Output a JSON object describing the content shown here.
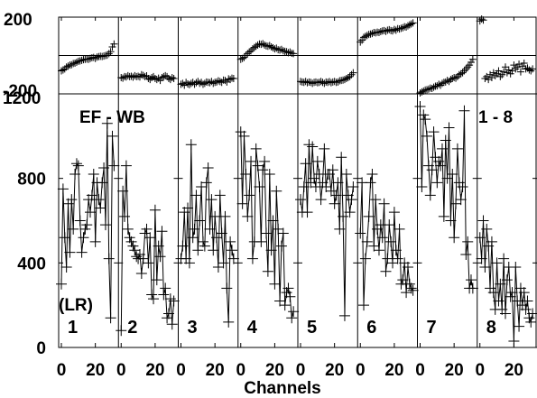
{
  "chart_data": {
    "type": "line",
    "panel_count": 8,
    "xlabel": "Channels",
    "x_tick_labels": [
      "0",
      "20"
    ],
    "xlim_per_panel": [
      0,
      32
    ],
    "top_strip": {
      "ylim": [
        -200,
        200
      ],
      "y_tick_labels": [
        "200",
        "-200"
      ],
      "reference_line": 0
    },
    "main": {
      "ylim": [
        0,
        1200
      ],
      "y_ticks": [
        0,
        400,
        800,
        1200
      ],
      "y_tick_labels": [
        "0",
        "400",
        "800",
        "1200"
      ],
      "ylabel": "(LR)",
      "title_left": "EF - WB",
      "title_right": "1 - 8"
    },
    "series": [
      {
        "name": "1",
        "residuals": [
          -80,
          -75,
          -70,
          -60,
          -55,
          -50,
          -48,
          -42,
          -40,
          -35,
          -30,
          -28,
          -25,
          -22,
          -20,
          -18,
          -20,
          -15,
          -12,
          -10,
          -15,
          -8,
          -6,
          -4,
          -5,
          -3,
          0,
          2,
          10,
          20,
          45,
          60
        ],
        "values": [
          300,
          750,
          520,
          380,
          680,
          450,
          700,
          560,
          820,
          870,
          860,
          600,
          450,
          520,
          560,
          580,
          700,
          640,
          720,
          820,
          500,
          780,
          700,
          660,
          780,
          850,
          580,
          1060,
          420,
          140,
          1000,
          860
        ]
      },
      {
        "name": "2",
        "residuals": [
          -115,
          -118,
          -110,
          -112,
          -105,
          -110,
          -108,
          -113,
          -105,
          -110,
          -108,
          -112,
          -100,
          -104,
          -110,
          -106,
          -120,
          -125,
          -115,
          -110,
          -120,
          -125,
          -118,
          -130,
          -115,
          -110,
          -105,
          -110,
          -120,
          -125,
          -115,
          -120
        ],
        "values": [
          80,
          740,
          620,
          860,
          560,
          520,
          500,
          480,
          460,
          430,
          420,
          440,
          350,
          420,
          540,
          560,
          400,
          520,
          250,
          230,
          650,
          320,
          480,
          430,
          550,
          250,
          280,
          140,
          160,
          230,
          110,
          220
        ]
      },
      {
        "name": "3",
        "residuals": [
          -150,
          -145,
          -155,
          -140,
          -148,
          -152,
          -145,
          -140,
          -150,
          -142,
          -135,
          -145,
          -140,
          -150,
          -145,
          -138,
          -140,
          -142,
          -135,
          -145,
          -140,
          -138,
          -132,
          -136,
          -140,
          -128,
          -130,
          -138,
          -122,
          -125,
          -118,
          -120
        ],
        "values": [
          420,
          480,
          640,
          420,
          660,
          400,
          960,
          520,
          560,
          720,
          460,
          600,
          760,
          500,
          480,
          780,
          850,
          560,
          700,
          460,
          620,
          520,
          380,
          720,
          540,
          400,
          620,
          280,
          120,
          500,
          460,
          420
        ]
      },
      {
        "name": "4",
        "residuals": [
          -20,
          -15,
          -10,
          0,
          10,
          18,
          25,
          35,
          42,
          48,
          55,
          60,
          58,
          62,
          55,
          50,
          48,
          52,
          45,
          40,
          35,
          38,
          30,
          28,
          32,
          25,
          22,
          20,
          15,
          18,
          12,
          10
        ],
        "values": [
          1020,
          680,
          1000,
          820,
          620,
          720,
          880,
          420,
          500,
          940,
          860,
          760,
          500,
          840,
          880,
          540,
          360,
          820,
          460,
          600,
          300,
          740,
          560,
          220,
          480,
          540,
          200,
          260,
          280,
          240,
          140,
          170
        ]
      },
      {
        "name": "5",
        "residuals": [
          -135,
          -138,
          -140,
          -135,
          -142,
          -138,
          -140,
          -145,
          -140,
          -138,
          -142,
          -140,
          -135,
          -140,
          -145,
          -138,
          -140,
          -136,
          -142,
          -138,
          -135,
          -140,
          -138,
          -132,
          -130,
          -128,
          -125,
          -120,
          -115,
          -110,
          -100,
          -90
        ],
        "values": [
          700,
          640,
          760,
          870,
          640,
          960,
          780,
          950,
          800,
          760,
          880,
          820,
          700,
          780,
          940,
          760,
          820,
          820,
          740,
          840,
          680,
          720,
          780,
          560,
          900,
          620,
          150,
          820,
          720,
          640,
          700,
          760
        ]
      },
      {
        "name": "6",
        "residuals": [
          70,
          80,
          95,
          100,
          105,
          110,
          112,
          115,
          120,
          118,
          122,
          120,
          125,
          128,
          130,
          126,
          132,
          135,
          130,
          128,
          136,
          132,
          140,
          138,
          142,
          145,
          150,
          148,
          155,
          160,
          165,
          170
        ],
        "values": [
          540,
          780,
          200,
          420,
          500,
          620,
          780,
          820,
          480,
          700,
          560,
          460,
          580,
          520,
          680,
          360,
          420,
          580,
          500,
          400,
          640,
          460,
          420,
          560,
          300,
          320,
          400,
          260,
          380,
          300,
          280,
          270
        ]
      },
      {
        "name": "7",
        "residuals": [
          -195,
          -190,
          -185,
          -180,
          -178,
          -175,
          -170,
          -172,
          -165,
          -160,
          -158,
          -150,
          -155,
          -145,
          -140,
          -138,
          -130,
          -135,
          -125,
          -120,
          -115,
          -118,
          -110,
          -100,
          -95,
          -90,
          -80,
          -70,
          -60,
          -50,
          -35,
          -20
        ],
        "values": [
          1140,
          760,
          1100,
          1080,
          1000,
          860,
          720,
          840,
          1020,
          900,
          780,
          880,
          860,
          940,
          620,
          980,
          800,
          1040,
          600,
          820,
          520,
          680,
          940,
          780,
          700,
          760,
          1120,
          440,
          500,
          280,
          320,
          280
        ]
      },
      {
        "name": "8",
        "residuals": [
          180,
          190,
          185,
          -120,
          -110,
          -125,
          -100,
          -115,
          -90,
          -105,
          -95,
          -80,
          -110,
          -100,
          -85,
          -60,
          -90,
          -75,
          -95,
          -80,
          -50,
          -70,
          -60,
          -45,
          -85,
          -55,
          -40,
          -70,
          -65,
          -75,
          -80,
          -70
        ],
        "values": [
          520,
          420,
          600,
          380,
          560,
          480,
          280,
          500,
          260,
          180,
          400,
          220,
          300,
          180,
          420,
          160,
          320,
          380,
          240,
          260,
          30,
          380,
          220,
          100,
          280,
          200,
          260,
          180,
          220,
          140,
          120,
          160
        ]
      }
    ]
  }
}
